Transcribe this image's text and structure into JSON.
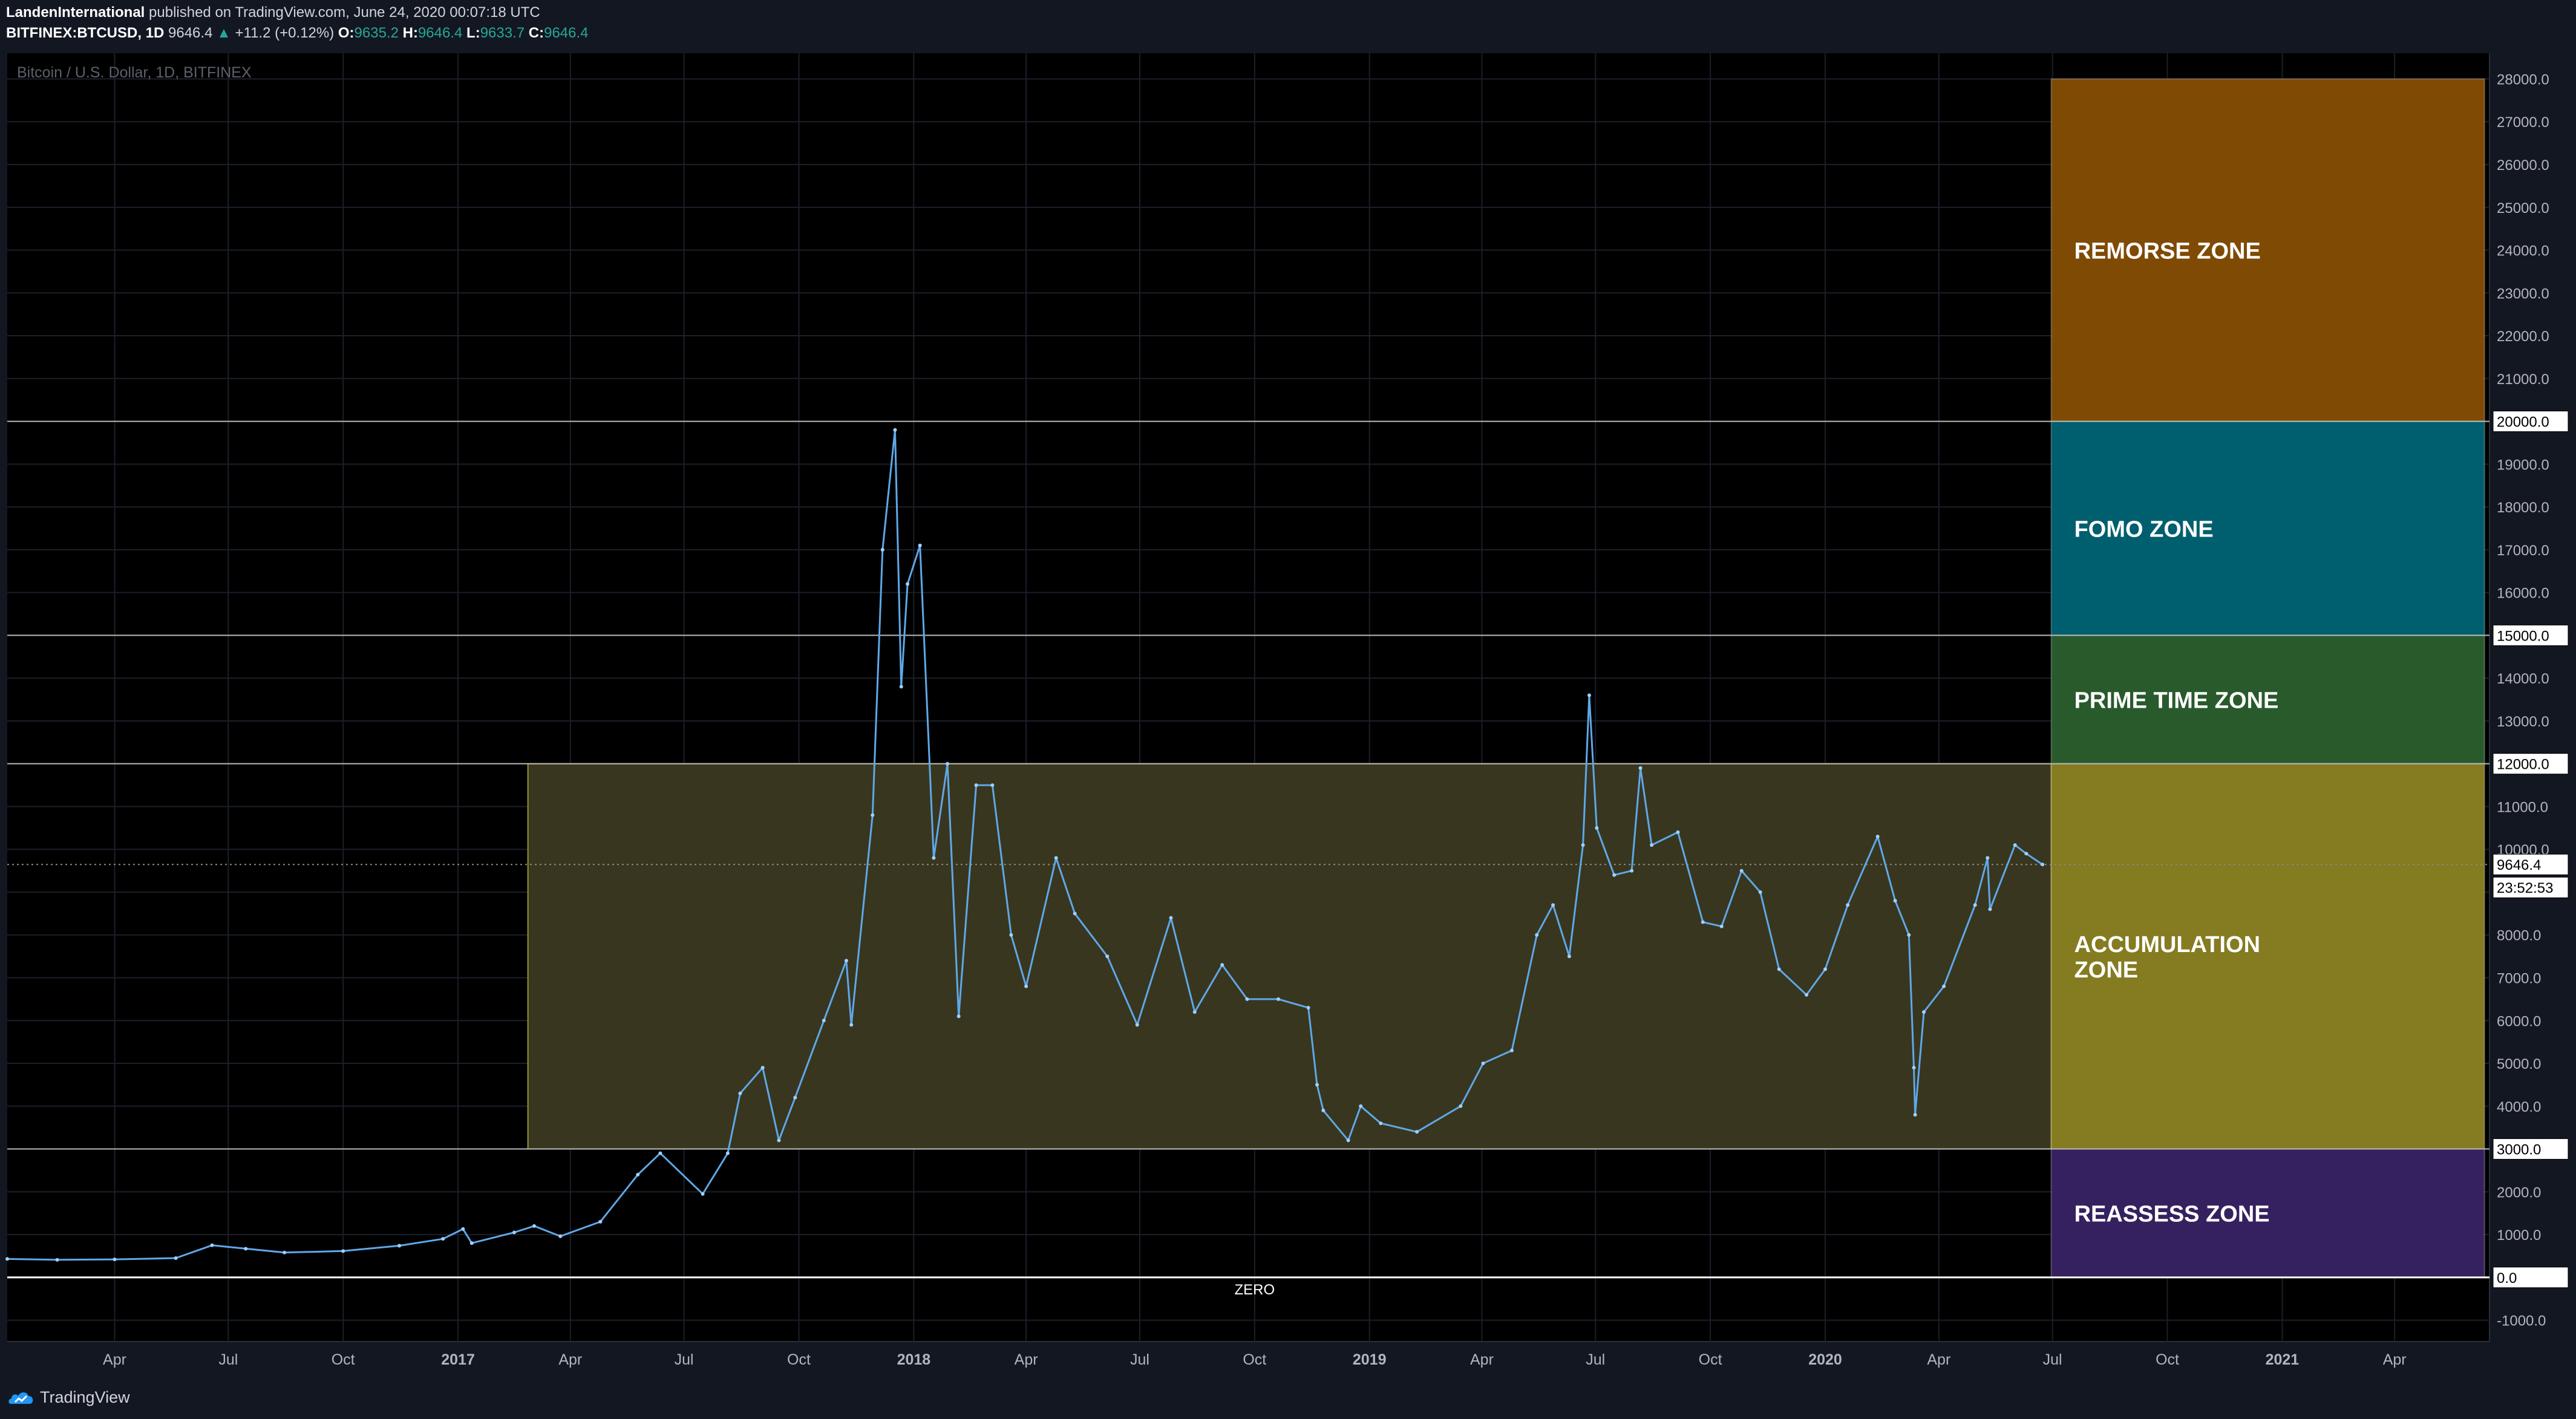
{
  "header": {
    "author": "LandenInternational",
    "published_text": " published on TradingView.com, June 24, 2020 00:07:18 UTC",
    "symbol": "BITFINEX:BTCUSD, 1D",
    "last": "9646.4",
    "change_arrow": "▲",
    "change": "+11.2 (+0.12%)",
    "o_label": "O:",
    "o_value": "9635.2",
    "h_label": "H:",
    "h_value": "9646.4",
    "l_label": "L:",
    "l_value": "9633.7",
    "c_label": "C:",
    "c_value": "9646.4"
  },
  "footer": {
    "brand": "TradingView"
  },
  "colors": {
    "background": "#000000",
    "panel": "#131722",
    "price_line": "#5fa8e8",
    "remorse": "#7f4a04",
    "fomo": "#005f6e",
    "prime": "#295a2c",
    "accumulation": "#857b21",
    "accumulation_box": "#38361f",
    "reassess": "#35215f"
  },
  "chart_data": {
    "type": "line",
    "title": "Bitcoin / U.S. Dollar, 1D, BITFINEX",
    "ylim": [
      -1500,
      28600
    ],
    "xlim": [
      "2016-01-06",
      "2021-06-16"
    ],
    "y_ticks": [
      "28000.0",
      "27000.0",
      "26000.0",
      "25000.0",
      "24000.0",
      "23000.0",
      "22000.0",
      "21000.0",
      "19000.0",
      "18000.0",
      "17000.0",
      "16000.0",
      "14000.0",
      "13000.0",
      "11000.0",
      "10000.0",
      "8000.0",
      "7000.0",
      "6000.0",
      "5000.0",
      "4000.0",
      "2000.0",
      "1000.0",
      "-1000.0"
    ],
    "x_ticks": [
      {
        "date": "2016-04-01",
        "label": "Apr"
      },
      {
        "date": "2016-07-01",
        "label": "Jul"
      },
      {
        "date": "2016-10-01",
        "label": "Oct"
      },
      {
        "date": "2017-01-01",
        "label": "2017"
      },
      {
        "date": "2017-04-01",
        "label": "Apr"
      },
      {
        "date": "2017-07-01",
        "label": "Jul"
      },
      {
        "date": "2017-10-01",
        "label": "Oct"
      },
      {
        "date": "2018-01-01",
        "label": "2018"
      },
      {
        "date": "2018-04-01",
        "label": "Apr"
      },
      {
        "date": "2018-07-01",
        "label": "Jul"
      },
      {
        "date": "2018-10-01",
        "label": "Oct"
      },
      {
        "date": "2019-01-01",
        "label": "2019"
      },
      {
        "date": "2019-04-01",
        "label": "Apr"
      },
      {
        "date": "2019-07-01",
        "label": "Jul"
      },
      {
        "date": "2019-10-01",
        "label": "Oct"
      },
      {
        "date": "2020-01-01",
        "label": "2020"
      },
      {
        "date": "2020-04-01",
        "label": "Apr"
      },
      {
        "date": "2020-07-01",
        "label": "Jul"
      },
      {
        "date": "2020-10-01",
        "label": "Oct"
      },
      {
        "date": "2021-01-01",
        "label": "2021"
      },
      {
        "date": "2021-04-01",
        "label": "Apr"
      }
    ],
    "horizontal_lines": [
      {
        "value": 20000,
        "label": "20000.0"
      },
      {
        "value": 15000,
        "label": "15000.0"
      },
      {
        "value": 12000,
        "label": "12000.0"
      },
      {
        "value": 3000,
        "label": "3000.0"
      },
      {
        "value": 0,
        "label": "0.0"
      }
    ],
    "zero_label": "ZERO",
    "last_price": {
      "value": 9646.4,
      "label": "9646.4",
      "countdown": "23:52:53"
    },
    "accumulation_box": {
      "x0": "2017-02-26",
      "x1": "2020-06-30",
      "y0": 3000,
      "y1": 12000
    },
    "zones": [
      {
        "label": "REMORSE ZONE",
        "lines": [
          "REMORSE ZONE"
        ],
        "y0": 20000,
        "y1": 28000,
        "color": "#7f4a04"
      },
      {
        "label": "FOMO ZONE",
        "lines": [
          "FOMO ZONE"
        ],
        "y0": 15000,
        "y1": 20000,
        "color": "#005f6e"
      },
      {
        "label": "PRIME TIME ZONE",
        "lines": [
          "PRIME TIME ZONE"
        ],
        "y0": 12000,
        "y1": 15000,
        "color": "#295a2c"
      },
      {
        "label": "ACCUMULATION ZONE",
        "lines": [
          "ACCUMULATION",
          "ZONE"
        ],
        "y0": 3000,
        "y1": 12000,
        "color": "#857b21"
      },
      {
        "label": "REASSESS ZONE",
        "lines": [
          "REASSESS ZONE"
        ],
        "y0": 0,
        "y1": 3000,
        "color": "#35215f"
      }
    ],
    "zone_x0": "2020-06-30",
    "zone_x1": "2021-06-12",
    "series": [
      {
        "x": [
          "2016-01-06",
          "2016-02-15",
          "2016-04-01",
          "2016-05-20",
          "2016-06-18",
          "2016-07-15",
          "2016-08-15",
          "2016-10-01",
          "2016-11-15",
          "2016-12-20",
          "2017-01-05",
          "2017-01-12",
          "2017-02-15",
          "2017-03-03",
          "2017-03-24",
          "2017-04-25",
          "2017-05-25",
          "2017-06-12",
          "2017-07-16",
          "2017-08-05",
          "2017-08-15",
          "2017-09-02",
          "2017-09-15",
          "2017-09-28",
          "2017-10-21",
          "2017-11-08",
          "2017-11-12",
          "2017-11-29",
          "2017-12-07",
          "2017-12-17",
          "2017-12-22",
          "2017-12-27",
          "2018-01-06",
          "2018-01-17",
          "2018-01-28",
          "2018-02-06",
          "2018-02-20",
          "2018-03-05",
          "2018-03-20",
          "2018-04-01",
          "2018-04-25",
          "2018-05-10",
          "2018-06-05",
          "2018-06-29",
          "2018-07-26",
          "2018-08-14",
          "2018-09-05",
          "2018-09-25",
          "2018-10-20",
          "2018-11-13",
          "2018-11-20",
          "2018-11-25",
          "2018-12-15",
          "2018-12-25",
          "2019-01-10",
          "2019-02-08",
          "2019-03-15",
          "2019-04-02",
          "2019-04-25",
          "2019-05-15",
          "2019-05-28",
          "2019-06-10",
          "2019-06-21",
          "2019-06-26",
          "2019-07-02",
          "2019-07-16",
          "2019-07-30",
          "2019-08-06",
          "2019-08-15",
          "2019-09-05",
          "2019-09-25",
          "2019-10-10",
          "2019-10-26",
          "2019-11-10",
          "2019-11-25",
          "2019-12-17",
          "2020-01-01",
          "2020-01-19",
          "2020-02-12",
          "2020-02-26",
          "2020-03-08",
          "2020-03-12",
          "2020-03-13",
          "2020-03-20",
          "2020-04-05",
          "2020-04-30",
          "2020-05-10",
          "2020-05-12",
          "2020-06-01",
          "2020-06-10",
          "2020-06-23"
        ],
        "values": [
          430,
          410,
          420,
          450,
          750,
          670,
          580,
          615,
          740,
          900,
          1130,
          800,
          1050,
          1200,
          960,
          1300,
          2400,
          2900,
          1950,
          2900,
          4300,
          4900,
          3200,
          4200,
          6000,
          7400,
          5900,
          10800,
          17000,
          19800,
          13800,
          16200,
          17100,
          9800,
          12000,
          6100,
          11500,
          11500,
          8000,
          6800,
          9800,
          8500,
          7500,
          5900,
          8400,
          6200,
          7300,
          6500,
          6500,
          6300,
          4500,
          3900,
          3200,
          4000,
          3600,
          3400,
          4000,
          5000,
          5300,
          8000,
          8700,
          7500,
          10100,
          13600,
          10500,
          9400,
          9500,
          11900,
          10100,
          10400,
          8300,
          8200,
          9500,
          9000,
          7200,
          6600,
          7200,
          8700,
          10300,
          8800,
          8000,
          4900,
          3800,
          6200,
          6800,
          8700,
          9800,
          8600,
          10100,
          9900,
          9646
        ]
      }
    ]
  }
}
